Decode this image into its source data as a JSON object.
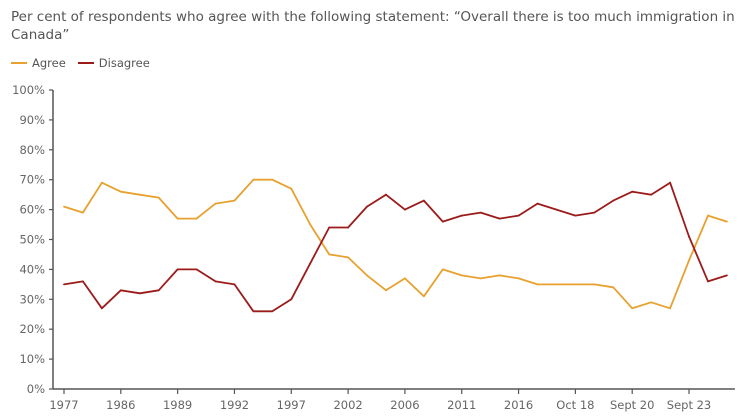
{
  "chart_data": {
    "type": "line",
    "title": "Per cent of respondents who agree with the following statement: “Overall there is too much immigration in Canada”",
    "x_tick_labels": [
      "1977",
      "1986",
      "1989",
      "1992",
      "1997",
      "2002",
      "2006",
      "2011",
      "2016",
      "Oct 18",
      "Sept 20",
      "Sept 23"
    ],
    "y_tick_labels": [
      "0%",
      "10%",
      "20%",
      "30%",
      "40%",
      "50%",
      "60%",
      "70%",
      "80%",
      "90%",
      "100%"
    ],
    "ylim": [
      0,
      100
    ],
    "grid": false,
    "legend": "top-left",
    "series": [
      {
        "name": "Agree",
        "color": "#e8a02e",
        "values": [
          61,
          59,
          69,
          66,
          65,
          64,
          57,
          57,
          62,
          63,
          70,
          70,
          67,
          55,
          45,
          44,
          38,
          33,
          37,
          31,
          40,
          38,
          37,
          38,
          37,
          35,
          35,
          35,
          35,
          34,
          27,
          29,
          27,
          43,
          58,
          56
        ]
      },
      {
        "name": "Disagree",
        "color": "#9b1b1b",
        "values": [
          35,
          36,
          27,
          33,
          32,
          33,
          40,
          40,
          36,
          35,
          26,
          26,
          30,
          42,
          54,
          54,
          61,
          65,
          60,
          63,
          56,
          58,
          59,
          57,
          58,
          62,
          60,
          58,
          59,
          63,
          66,
          65,
          69,
          51,
          36,
          38
        ]
      }
    ]
  }
}
